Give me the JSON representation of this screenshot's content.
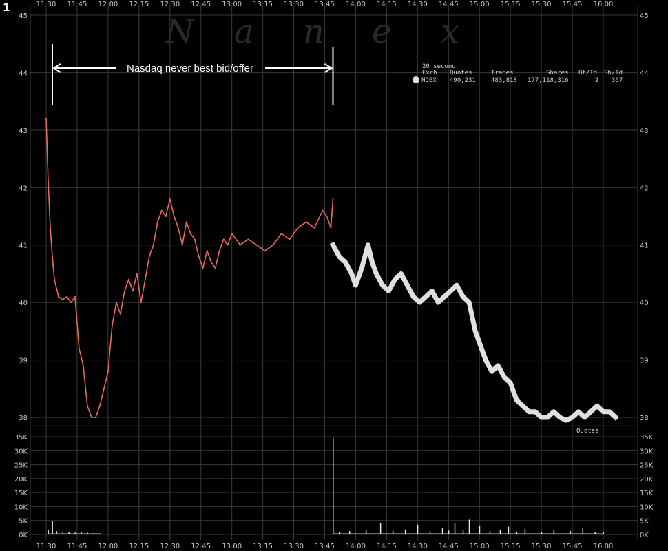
{
  "panel_number": "1",
  "watermark": [
    "N",
    "a",
    "n",
    "e",
    "x"
  ],
  "colors": {
    "nasdaq_series": "#e86a60",
    "quotes_series": "#e0e0e0",
    "grid": "#3a3a3a",
    "background": "#000000"
  },
  "info_box": {
    "header": "20 second",
    "columns": [
      "Exch",
      "Quotes",
      "Trades",
      "Shares",
      "Qt/Td",
      "Sh/Td"
    ],
    "row": {
      "exch": "NQEX",
      "quotes": "490,231",
      "trades": "483,818",
      "shares": "177,118,316",
      "qt_td": "2",
      "sh_td": "367"
    }
  },
  "chart_data": {
    "type": "line",
    "x_ticks": [
      "11:30",
      "11:45",
      "12:00",
      "12:15",
      "12:30",
      "12:45",
      "13:00",
      "13:15",
      "13:30",
      "13:45",
      "14:00",
      "14:15",
      "14:30",
      "14:45",
      "15:00",
      "15:15",
      "15:30",
      "15:45",
      "16:00"
    ],
    "price_ticks": [
      "45",
      "44",
      "43",
      "42",
      "41",
      "40",
      "39",
      "38"
    ],
    "ylim": [
      38,
      45
    ],
    "volume_ticks": [
      "35K",
      "30K",
      "25K",
      "20K",
      "15K",
      "10K",
      "5K",
      "0K"
    ],
    "volume_ylim": [
      0,
      35000
    ],
    "grid": true,
    "annotation": {
      "text": "Nasdaq never best bid/offer",
      "x_start": "11:33",
      "x_end": "13:49"
    },
    "quotes_label": "Quotes",
    "series": [
      {
        "role": "nasdaq",
        "x": [
          "11:30",
          "11:31",
          "11:32",
          "11:33",
          "11:34",
          "11:36",
          "11:38",
          "11:40",
          "11:42",
          "11:44",
          "11:46",
          "11:48",
          "11:50",
          "11:52",
          "11:54",
          "11:56",
          "11:58",
          "12:00",
          "12:02",
          "12:04",
          "12:06",
          "12:08",
          "12:10",
          "12:12",
          "12:14",
          "12:16",
          "12:18",
          "12:20",
          "12:22",
          "12:24",
          "12:26",
          "12:28",
          "12:30",
          "12:32",
          "12:34",
          "12:36",
          "12:38",
          "12:40",
          "12:42",
          "12:44",
          "12:46",
          "12:48",
          "12:50",
          "12:52",
          "12:54",
          "12:56",
          "12:58",
          "13:00",
          "13:04",
          "13:08",
          "13:12",
          "13:16",
          "13:20",
          "13:24",
          "13:28",
          "13:32",
          "13:36",
          "13:40",
          "13:44",
          "13:46",
          "13:48",
          "13:49"
        ],
        "y": [
          43.2,
          42.1,
          41.3,
          40.8,
          40.4,
          40.1,
          40.05,
          40.1,
          40.0,
          40.1,
          39.2,
          38.9,
          38.2,
          38.0,
          38.0,
          38.2,
          38.5,
          38.8,
          39.6,
          40.0,
          39.8,
          40.2,
          40.4,
          40.2,
          40.5,
          40.0,
          40.4,
          40.8,
          41.0,
          41.4,
          41.6,
          41.5,
          41.8,
          41.5,
          41.3,
          41.0,
          41.4,
          41.2,
          41.1,
          40.8,
          40.6,
          40.9,
          40.7,
          40.6,
          40.9,
          41.1,
          41.0,
          41.2,
          41.0,
          41.1,
          41.0,
          40.9,
          41.0,
          41.2,
          41.1,
          41.3,
          41.4,
          41.3,
          41.6,
          41.5,
          41.3,
          41.8
        ]
      },
      {
        "role": "quotes",
        "name": "Quotes",
        "x": [
          "13:49",
          "13:52",
          "13:55",
          "13:58",
          "14:00",
          "14:03",
          "14:06",
          "14:08",
          "14:10",
          "14:13",
          "14:16",
          "14:19",
          "14:22",
          "14:25",
          "14:28",
          "14:31",
          "14:34",
          "14:37",
          "14:40",
          "14:43",
          "14:46",
          "14:49",
          "14:52",
          "14:55",
          "14:58",
          "15:00",
          "15:03",
          "15:06",
          "15:09",
          "15:12",
          "15:15",
          "15:18",
          "15:21",
          "15:24",
          "15:27",
          "15:30",
          "15:33",
          "15:36",
          "15:39",
          "15:42",
          "15:45",
          "15:48",
          "15:51",
          "15:54",
          "15:57",
          "16:00",
          "16:03",
          "16:06"
        ],
        "y": [
          41.0,
          40.8,
          40.7,
          40.5,
          40.3,
          40.6,
          41.0,
          40.7,
          40.5,
          40.3,
          40.2,
          40.4,
          40.5,
          40.3,
          40.1,
          40.0,
          40.1,
          40.2,
          40.0,
          40.1,
          40.2,
          40.3,
          40.1,
          40.0,
          39.5,
          39.3,
          39.0,
          38.8,
          38.9,
          38.7,
          38.6,
          38.3,
          38.2,
          38.1,
          38.1,
          38.0,
          38.0,
          38.1,
          38.0,
          37.95,
          38.0,
          38.1,
          38.0,
          38.1,
          38.2,
          38.1,
          38.1,
          38.0
        ]
      }
    ],
    "volume_series": [
      {
        "role": "nasdaq_volume",
        "x": [
          "11:31",
          "11:33",
          "11:35",
          "11:38",
          "11:41",
          "11:44",
          "11:47",
          "11:50",
          "11:53",
          "11:56"
        ],
        "y": [
          1500,
          4800,
          1200,
          900,
          800,
          700,
          900,
          600,
          500,
          400
        ]
      },
      {
        "role": "quotes_volume",
        "x": [
          "13:49",
          "13:52",
          "13:57",
          "14:05",
          "14:12",
          "14:18",
          "14:24",
          "14:30",
          "14:36",
          "14:42",
          "14:45",
          "14:48",
          "14:52",
          "14:55",
          "15:00",
          "15:05",
          "15:10",
          "15:14",
          "15:18",
          "15:22",
          "15:30",
          "15:36",
          "15:44",
          "15:50",
          "15:56",
          "16:00"
        ],
        "y": [
          34500,
          800,
          1200,
          1500,
          4200,
          1300,
          1800,
          3500,
          1100,
          2400,
          1400,
          4000,
          1600,
          5300,
          3100,
          1200,
          1500,
          2800,
          1000,
          2000,
          900,
          1700,
          1200,
          2300,
          900,
          1000
        ]
      }
    ]
  }
}
